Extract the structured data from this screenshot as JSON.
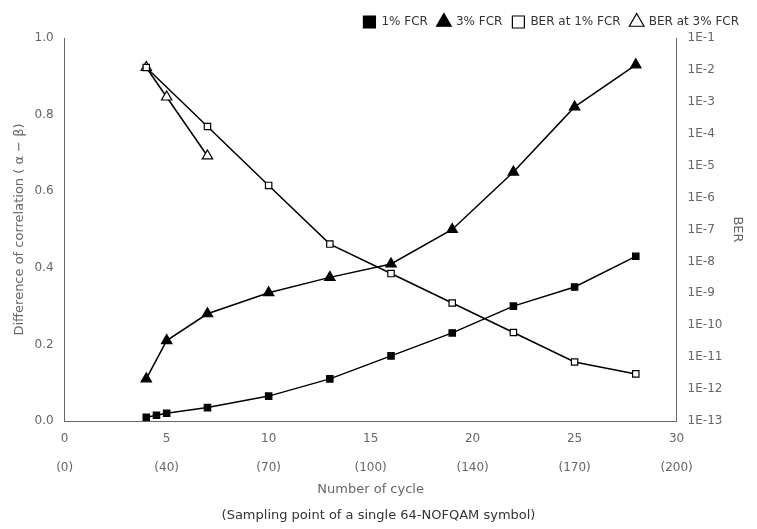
{
  "chart_data": {
    "type": "line",
    "subtitle": "(Sampling point of a single 64-NOFQAM symbol)",
    "xlabel": "Number of cycle",
    "ylabel": "Difference of correlation ( α − β)",
    "y2label": "BER",
    "xlim": [
      0,
      30
    ],
    "xticks": [
      0,
      5,
      10,
      15,
      20,
      25,
      30
    ],
    "x2lim": [
      0,
      30
    ],
    "x2ticks": [
      {
        "value": 0,
        "label": "(0)"
      },
      {
        "value": 5,
        "label": "(40)"
      },
      {
        "value": 10,
        "label": "(70)"
      },
      {
        "value": 15,
        "label": "(100)"
      },
      {
        "value": 20,
        "label": "(140)"
      },
      {
        "value": 25,
        "label": "(170)"
      },
      {
        "value": 30,
        "label": "(200)"
      }
    ],
    "ylim": [
      0.0,
      1.0
    ],
    "yticks": [
      {
        "value": 0,
        "label": "0.0"
      },
      {
        "value": 0.2,
        "label": "0.2"
      },
      {
        "value": 0.4,
        "label": "0.4"
      },
      {
        "value": 0.6,
        "label": "0.6"
      },
      {
        "value": 0.8,
        "label": "0.8"
      },
      {
        "value": 1,
        "label": "1.0"
      }
    ],
    "y2lim": [
      0.0,
      1.0
    ],
    "y2ticks": [
      {
        "value": 1.0,
        "label": "1E-1"
      },
      {
        "value": 0.9166666666666666,
        "label": "1E-2"
      },
      {
        "value": 0.8333333333333334,
        "label": "1E-3"
      },
      {
        "value": 0.75,
        "label": "1E-4"
      },
      {
        "value": 0.6666666666666667,
        "label": "1E-5"
      },
      {
        "value": 0.5833333333333334,
        "label": "1E-6"
      },
      {
        "value": 0.5,
        "label": "1E-7"
      },
      {
        "value": 0.4166666666666667,
        "label": "1E-8"
      },
      {
        "value": 0.3333333333333333,
        "label": "1E-9"
      },
      {
        "value": 0.25,
        "label": "1E-10"
      },
      {
        "value": 0.16666666666666666,
        "label": "1E-11"
      },
      {
        "value": 0.08333333333333337,
        "label": "1E-12"
      },
      {
        "value": 0.0,
        "label": "1E-13"
      }
    ],
    "grid": false,
    "legend": "upper right",
    "series": [
      {
        "name": "1% FCR",
        "color": "#000000",
        "marker": "square",
        "line_style": "solid",
        "x": [
          4,
          4.5,
          5,
          7,
          10,
          13,
          16,
          19,
          22,
          25,
          28
        ],
        "values": [
          0.01,
          0.015,
          0.02,
          0.035,
          0.065,
          0.11,
          0.17,
          0.23,
          0.3,
          0.35,
          0.43
        ]
      },
      {
        "name": "3% FCR",
        "color": "#000000",
        "marker": "triangle",
        "line_style": "solid",
        "x": [
          4,
          5,
          7,
          10,
          13,
          16,
          19,
          22,
          25,
          28
        ],
        "values": [
          0.11,
          0.21,
          0.28,
          0.335,
          0.375,
          0.41,
          0.5,
          0.65,
          0.82,
          0.93
        ]
      },
      {
        "name": "BER at 1% FCR",
        "color": "#000000",
        "marker": "square-open",
        "line_style": "solid",
        "x": [
          4,
          7,
          10,
          13,
          16,
          19,
          22,
          25,
          28
        ],
        "values": [
          0.923,
          0.769,
          0.615,
          0.462,
          0.385,
          0.308,
          0.231,
          0.154,
          0.123
        ]
      },
      {
        "name": "BER at 3% FCR",
        "color": "#000000",
        "marker": "triangle-open",
        "line_style": "solid",
        "x": [
          4,
          5,
          7
        ],
        "values": [
          0.923,
          0.846,
          0.692
        ]
      }
    ]
  }
}
